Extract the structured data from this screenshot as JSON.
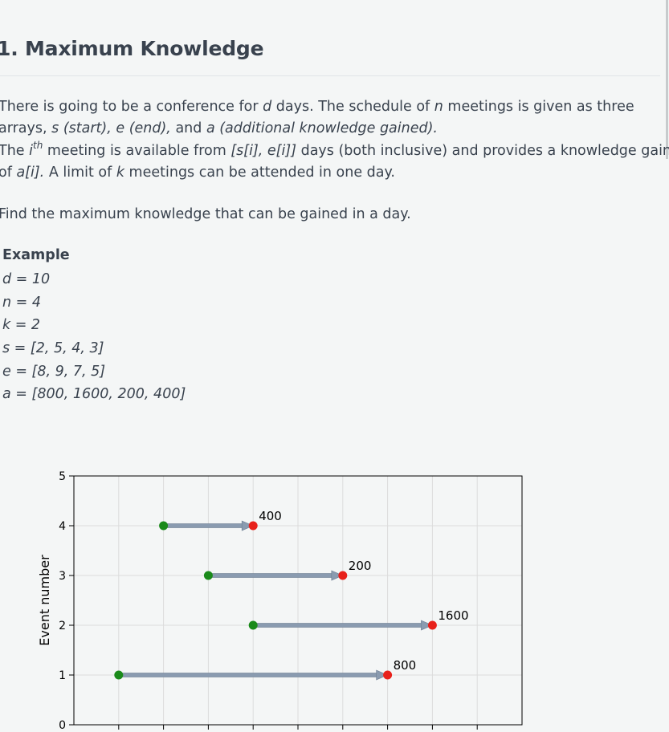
{
  "problem": {
    "title": "1. Maximum Knowledge",
    "p1_a": "There is going to be a conference for ",
    "p1_d": "d",
    "p1_b": " days. The schedule of ",
    "p1_n": "n",
    "p1_c": " meetings is given as three",
    "p2_a": "arrays, ",
    "p2_s": "s (start), e (end),",
    "p2_b": " and ",
    "p2_ag": "a (additional knowledge gained).",
    "p3_a": "The ",
    "p3_i": "i",
    "p3_th": "th",
    "p3_b": " meeting is available from ",
    "p3_range": "[s[i], e[i]]",
    "p3_c": " days (both inclusive) and provides a knowledge gain",
    "p4_a": "of ",
    "p4_ai": "a[i].",
    "p4_b": "  A limit of ",
    "p4_k": "k",
    "p4_c": " meetings can be attended in one day.",
    "task": "Find the maximum knowledge that can be gained in a day."
  },
  "example": {
    "heading": "Example",
    "d": "d = 10",
    "n": "n = 4",
    "k": "k = 2",
    "s": "s = [2, 5, 4, 3]",
    "e": "e = [8, 9, 7, 5]",
    "a": "a = [800, 1600, 200, 400]"
  },
  "chart_data": {
    "type": "scatter",
    "ylabel": "Event number",
    "ylim": [
      0,
      5
    ],
    "yticks": [
      "0",
      "1",
      "2",
      "3",
      "4",
      "5"
    ],
    "xlim": [
      0,
      10
    ],
    "xgrid": [
      1,
      2,
      3,
      4,
      5,
      6,
      7,
      8,
      9
    ],
    "grid": true,
    "start_color": "#1a8a1a",
    "end_color": "#e8211b",
    "arrow_color": "#8a9bb0",
    "events": [
      {
        "event": 1,
        "start": 1,
        "end": 7,
        "label": "800"
      },
      {
        "event": 2,
        "start": 4,
        "end": 8,
        "label": "1600"
      },
      {
        "event": 3,
        "start": 3,
        "end": 6,
        "label": "200"
      },
      {
        "event": 4,
        "start": 2,
        "end": 4,
        "label": "400"
      }
    ]
  }
}
